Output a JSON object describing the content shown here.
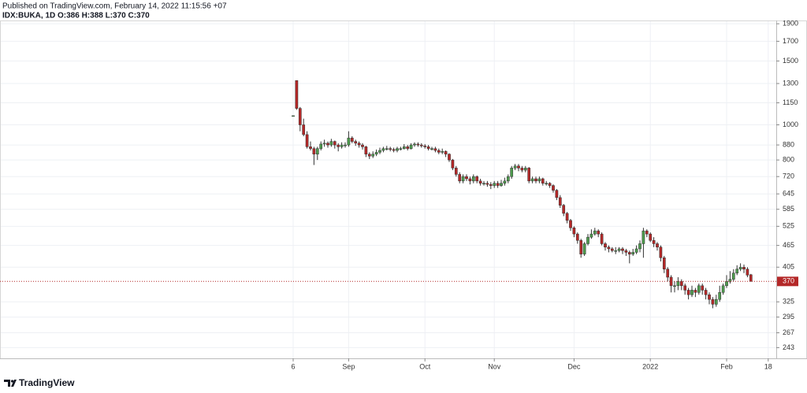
{
  "header": {
    "published": "Published on TradingView.com, February 14, 2022 11:15:56 +07",
    "symbol_line": "IDX:BUKA, 1D O:386 H:388 L:370 C:370"
  },
  "chart_data": {
    "type": "candlestick",
    "categories": [
      "6",
      null,
      null,
      null,
      null,
      null,
      null,
      null,
      null,
      null,
      null,
      null,
      null,
      null,
      null,
      null,
      "Sep",
      null,
      null,
      null,
      null,
      null,
      null,
      null,
      null,
      null,
      null,
      null,
      null,
      null,
      null,
      null,
      null,
      null,
      null,
      null,
      null,
      null,
      "Oct",
      null,
      null,
      null,
      null,
      null,
      null,
      null,
      null,
      null,
      null,
      null,
      null,
      null,
      null,
      null,
      null,
      null,
      null,
      null,
      "Nov",
      null,
      null,
      null,
      null,
      null,
      null,
      null,
      null,
      null,
      null,
      null,
      null,
      null,
      null,
      null,
      null,
      null,
      null,
      null,
      null,
      null,
      null,
      "Dec",
      null,
      null,
      null,
      null,
      null,
      null,
      null,
      null,
      null,
      null,
      null,
      null,
      null,
      null,
      null,
      null,
      null,
      null,
      null,
      null,
      null,
      "2022",
      null,
      null,
      null,
      null,
      null,
      null,
      null,
      null,
      null,
      null,
      null,
      null,
      null,
      null,
      null,
      null,
      null,
      null,
      null,
      null,
      null,
      "Feb",
      null,
      null,
      null,
      null,
      null,
      null,
      null,
      null,
      null,
      null,
      null,
      "18"
    ],
    "open": [
      1060,
      1325,
      1110,
      1000,
      940,
      870,
      860,
      830,
      860,
      885,
      890,
      880,
      900,
      880,
      870,
      880,
      880,
      920,
      900,
      890,
      880,
      870,
      830,
      820,
      830,
      840,
      850,
      860,
      860,
      855,
      850,
      860,
      860,
      870,
      860,
      880,
      885,
      880,
      875,
      870,
      860,
      860,
      850,
      840,
      845,
      830,
      800,
      760,
      730,
      700,
      720,
      710,
      700,
      720,
      700,
      690,
      690,
      685,
      680,
      690,
      680,
      690,
      700,
      720,
      760,
      770,
      760,
      750,
      760,
      700,
      710,
      700,
      710,
      690,
      690,
      680,
      660,
      630,
      600,
      570,
      545,
      520,
      500,
      480,
      440,
      470,
      490,
      500,
      510,
      500,
      470,
      460,
      455,
      450,
      450,
      455,
      450,
      445,
      440,
      445,
      455,
      470,
      510,
      500,
      480,
      470,
      460,
      430,
      400,
      380,
      360,
      360,
      370,
      360,
      350,
      340,
      350,
      345,
      360,
      350,
      340,
      330,
      320,
      330,
      345,
      360,
      370,
      375,
      390,
      400,
      405,
      400,
      386,
      null,
      null,
      null,
      null,
      null
    ],
    "high": [
      1060,
      1325,
      1120,
      1040,
      960,
      900,
      870,
      870,
      900,
      910,
      900,
      915,
      905,
      890,
      895,
      895,
      960,
      930,
      910,
      900,
      890,
      875,
      840,
      845,
      855,
      865,
      870,
      875,
      870,
      865,
      870,
      870,
      885,
      880,
      890,
      895,
      895,
      890,
      885,
      880,
      870,
      870,
      860,
      860,
      850,
      835,
      805,
      770,
      740,
      730,
      730,
      720,
      730,
      725,
      710,
      700,
      700,
      695,
      700,
      700,
      705,
      715,
      730,
      770,
      780,
      780,
      770,
      770,
      765,
      720,
      720,
      720,
      715,
      700,
      695,
      685,
      665,
      640,
      605,
      575,
      550,
      525,
      505,
      485,
      475,
      500,
      515,
      520,
      515,
      505,
      475,
      465,
      460,
      460,
      460,
      460,
      455,
      450,
      455,
      465,
      480,
      520,
      515,
      505,
      490,
      475,
      465,
      435,
      405,
      385,
      370,
      380,
      375,
      365,
      355,
      360,
      355,
      365,
      365,
      355,
      345,
      335,
      340,
      360,
      365,
      385,
      395,
      400,
      410,
      415,
      412,
      405,
      388,
      null,
      null,
      null,
      null,
      null
    ],
    "low": [
      1060,
      1100,
      960,
      930,
      860,
      850,
      775,
      800,
      850,
      870,
      865,
      870,
      860,
      845,
      860,
      865,
      870,
      890,
      875,
      865,
      855,
      815,
      805,
      810,
      820,
      830,
      840,
      850,
      845,
      840,
      840,
      850,
      855,
      850,
      855,
      870,
      870,
      865,
      860,
      850,
      850,
      840,
      830,
      830,
      815,
      790,
      750,
      720,
      690,
      690,
      700,
      685,
      690,
      690,
      680,
      680,
      675,
      665,
      670,
      670,
      675,
      680,
      690,
      710,
      750,
      745,
      740,
      740,
      690,
      690,
      690,
      690,
      680,
      680,
      670,
      650,
      620,
      590,
      560,
      535,
      510,
      490,
      470,
      430,
      435,
      465,
      485,
      495,
      490,
      465,
      450,
      445,
      445,
      440,
      445,
      440,
      435,
      415,
      435,
      440,
      445,
      430,
      490,
      475,
      460,
      450,
      420,
      390,
      370,
      345,
      345,
      350,
      350,
      340,
      330,
      335,
      335,
      340,
      340,
      330,
      320,
      312,
      315,
      325,
      340,
      355,
      365,
      370,
      385,
      395,
      390,
      380,
      370,
      null,
      null,
      null,
      null,
      null
    ],
    "close": [
      1060,
      1110,
      1000,
      940,
      870,
      860,
      830,
      860,
      885,
      890,
      880,
      900,
      880,
      870,
      880,
      880,
      920,
      900,
      890,
      880,
      870,
      830,
      820,
      830,
      840,
      850,
      860,
      860,
      855,
      850,
      860,
      860,
      870,
      860,
      880,
      885,
      880,
      875,
      870,
      860,
      860,
      850,
      840,
      845,
      830,
      800,
      760,
      730,
      700,
      720,
      710,
      700,
      720,
      700,
      690,
      690,
      685,
      680,
      690,
      680,
      690,
      700,
      720,
      760,
      770,
      760,
      750,
      760,
      700,
      710,
      700,
      710,
      690,
      690,
      680,
      660,
      630,
      600,
      570,
      545,
      520,
      500,
      480,
      440,
      470,
      490,
      500,
      510,
      500,
      470,
      460,
      455,
      450,
      450,
      455,
      450,
      445,
      440,
      445,
      455,
      470,
      510,
      500,
      480,
      470,
      460,
      430,
      400,
      380,
      360,
      360,
      370,
      360,
      350,
      340,
      350,
      345,
      360,
      350,
      340,
      330,
      320,
      330,
      345,
      360,
      370,
      375,
      390,
      400,
      405,
      400,
      385,
      370,
      null,
      null,
      null,
      null,
      null
    ],
    "up_color": "#4e9c4e",
    "down_color": "#b42828",
    "ylim": [
      227,
      1940
    ],
    "log_scale": true,
    "yticks": [
      243,
      267,
      295,
      325,
      405,
      465,
      525,
      585,
      645,
      720,
      800,
      880,
      1000,
      1150,
      1300,
      1500,
      1700,
      1900
    ],
    "grid": true,
    "last_price_line": true
  },
  "footer": {
    "brand": "TradingView"
  }
}
